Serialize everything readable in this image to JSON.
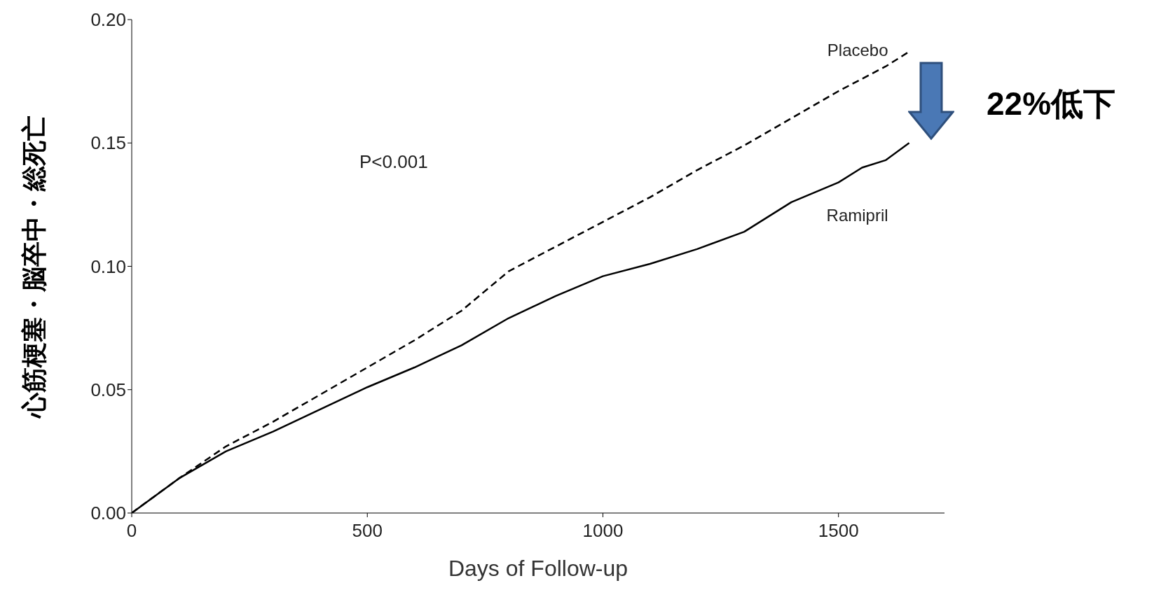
{
  "chart_data": {
    "type": "line",
    "xlabel": "Days of Follow-up",
    "ylabel": "心筋梗塞・脳卒中・総死亡",
    "xlim": [
      0,
      1725
    ],
    "xticks": [
      0,
      500,
      1000,
      1500
    ],
    "ylim": [
      0,
      0.2
    ],
    "yticks": [
      {
        "value": 0,
        "label": "0.00"
      },
      {
        "value": 0.05,
        "label": "0.05"
      },
      {
        "value": 0.1,
        "label": "0.10"
      },
      {
        "value": 0.15,
        "label": "0.15"
      },
      {
        "value": 0.2,
        "label": "0.20"
      }
    ],
    "x": [
      0,
      100,
      200,
      300,
      400,
      500,
      600,
      700,
      800,
      900,
      1000,
      1100,
      1200,
      1300,
      1400,
      1500,
      1550,
      1600,
      1650
    ],
    "series": [
      {
        "name": "Placebo",
        "color": "#000000",
        "line_style": "dashed",
        "values": [
          0,
          0.014,
          0.027,
          0.037,
          0.048,
          0.059,
          0.07,
          0.082,
          0.098,
          0.108,
          0.118,
          0.128,
          0.139,
          0.149,
          0.16,
          0.171,
          0.176,
          0.181,
          0.187
        ]
      },
      {
        "name": "Ramipril",
        "color": "#000000",
        "line_style": "solid",
        "values": [
          0,
          0.014,
          0.025,
          0.033,
          0.042,
          0.051,
          0.059,
          0.068,
          0.079,
          0.088,
          0.096,
          0.101,
          0.107,
          0.114,
          0.126,
          0.134,
          0.14,
          0.143,
          0.15
        ]
      }
    ],
    "annotations": [
      "P<0.001",
      "22%低下"
    ],
    "marker": "none",
    "grid": false,
    "legend": false
  }
}
